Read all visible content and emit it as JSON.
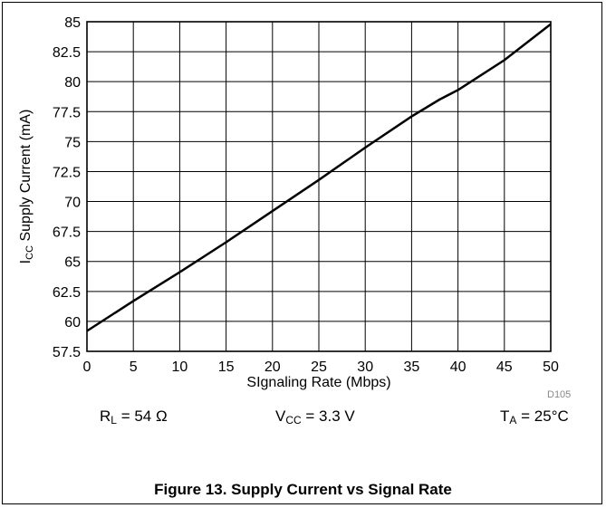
{
  "chart_data": {
    "type": "line",
    "xlabel": "SIgnaling Rate (Mbps)",
    "ylabel": "Supply Current (mA)",
    "ylabel_prefix": "I",
    "ylabel_sub": "CC",
    "xlim": [
      0,
      50
    ],
    "ylim": [
      57.5,
      85
    ],
    "xticks": [
      0,
      5,
      10,
      15,
      20,
      25,
      30,
      35,
      40,
      45,
      50
    ],
    "yticks": [
      57.5,
      60,
      62.5,
      65,
      67.5,
      70,
      72.5,
      75,
      77.5,
      80,
      82.5,
      85
    ],
    "grid": true,
    "series": [
      {
        "x": [
          0,
          5,
          10,
          15,
          20,
          25,
          30,
          35,
          38,
          40,
          45,
          50
        ],
        "y": [
          59.2,
          61.7,
          64.1,
          66.6,
          69.2,
          71.8,
          74.5,
          77.1,
          78.5,
          79.3,
          81.8,
          84.8
        ]
      }
    ]
  },
  "conditions": {
    "rl": {
      "main": "R",
      "sub": "L",
      "rest": " = 54 Ω"
    },
    "vcc": {
      "main": "V",
      "sub": "CC",
      "rest": " = 3.3 V"
    },
    "ta": {
      "main": "T",
      "sub": "A",
      "rest": " = 25°C"
    }
  },
  "figure_ref": "D105",
  "caption": "Figure 13. Supply Current vs Signal Rate",
  "colors": {
    "line": "#000000",
    "grid": "#000000"
  }
}
